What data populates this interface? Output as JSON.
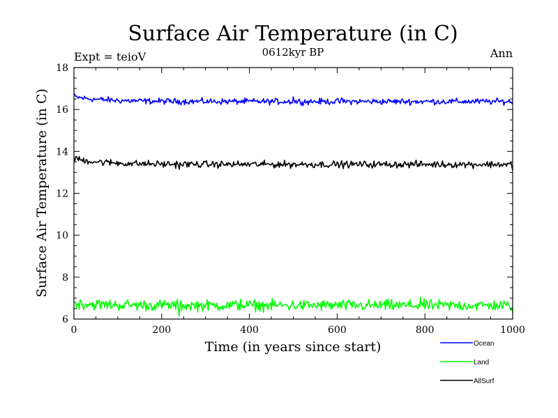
{
  "chart_data": {
    "type": "line",
    "title": "Surface Air Temperature (in C)",
    "subtitle": "0612kyr BP",
    "left_label": "Expt = teioV",
    "right_label": "Ann",
    "xlabel": "Time (in years since start)",
    "ylabel": "Surface Air Temperature (in C)",
    "xlim": [
      0,
      1000
    ],
    "ylim": [
      6,
      18
    ],
    "xticks": [
      0,
      200,
      400,
      600,
      800,
      1000
    ],
    "yticks": [
      6,
      8,
      10,
      12,
      14,
      16,
      18
    ],
    "grid": false,
    "legend_position": "bottom-right",
    "series": [
      {
        "name": "Ocean",
        "color": "#0000ff",
        "x_start": 0,
        "x_end": 1000,
        "start": 16.6,
        "mean": 16.38,
        "noise": 0.07,
        "extremes": [
          [
            0,
            16.75
          ],
          [
            500,
            16.6
          ],
          [
            610,
            16.55
          ]
        ]
      },
      {
        "name": "Land",
        "color": "#00ff00",
        "x_start": 0,
        "x_end": 1000,
        "start": 6.75,
        "mean": 6.65,
        "noise": 0.13,
        "extremes": [
          [
            240,
            6.15
          ],
          [
            380,
            6.95
          ],
          [
            790,
            7.05
          ],
          [
            1000,
            6.3
          ]
        ]
      },
      {
        "name": "AllSurf",
        "color": "#000000",
        "x_start": 0,
        "x_end": 1000,
        "start": 13.65,
        "mean": 13.38,
        "noise": 0.08,
        "extremes": [
          [
            5,
            13.75
          ],
          [
            240,
            13.15
          ],
          [
            1000,
            13.1
          ]
        ]
      }
    ]
  }
}
